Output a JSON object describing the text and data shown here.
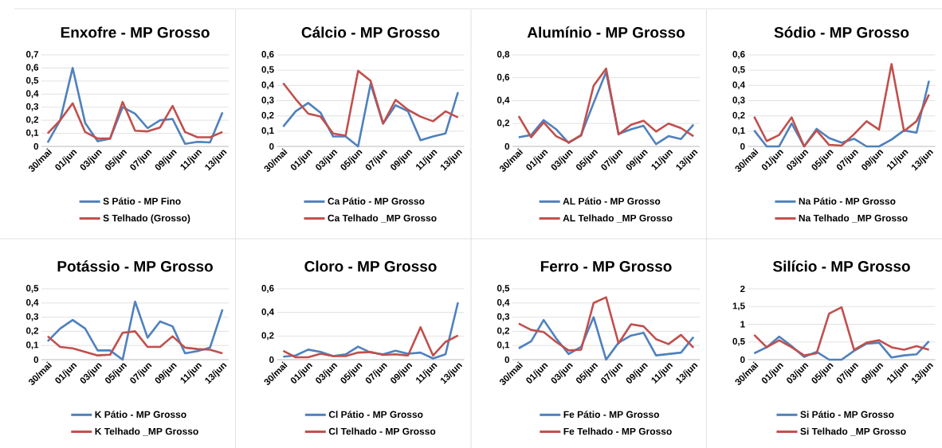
{
  "chart_data": [
    {
      "type": "line",
      "title": "Enxofre - MP Grosso",
      "categories": [
        "30/mai",
        null,
        "01/jun",
        null,
        "03/jun",
        null,
        "05/jun",
        null,
        "07/jun",
        null,
        "09/jun",
        null,
        "11/jun",
        null,
        "13/jun"
      ],
      "series": [
        {
          "name": "S Pátio - MP Fino",
          "color": "#4f81bd",
          "values": [
            0.03,
            0.2,
            0.6,
            0.18,
            0.04,
            0.06,
            0.3,
            0.25,
            0.14,
            0.2,
            0.21,
            0.02,
            0.035,
            0.03,
            0.26
          ]
        },
        {
          "name": "S Telhado (Grosso)",
          "color": "#c0504d",
          "values": [
            0.1,
            0.2,
            0.33,
            0.11,
            0.06,
            0.06,
            0.34,
            0.12,
            0.115,
            0.145,
            0.31,
            0.11,
            0.07,
            0.07,
            0.11
          ]
        }
      ],
      "ylim": [
        0,
        0.7
      ],
      "yticks": [
        0,
        {
          "value": 0.1,
          "label": "0,1"
        },
        {
          "value": 0.2,
          "label": "0,2"
        },
        {
          "value": 0.3,
          "label": "0,3"
        },
        {
          "value": 0.4,
          "label": "0,4"
        },
        {
          "value": 0.5,
          "label": "0,5"
        },
        {
          "value": 0.6,
          "label": "0,6"
        },
        {
          "value": 0.7,
          "label": "0,7"
        }
      ],
      "grid": "y",
      "legend": "bottom"
    },
    {
      "type": "line",
      "title": "Cálcio - MP Grosso",
      "categories": [
        "30/mai",
        null,
        "01/jun",
        null,
        "03/jun",
        null,
        "05/jun",
        null,
        "07/jun",
        null,
        "09/jun",
        null,
        "11/jun",
        null,
        "13/jun"
      ],
      "series": [
        {
          "name": "Ca Pátio - MP Grosso",
          "color": "#4f81bd",
          "values": [
            0.13,
            0.23,
            0.285,
            0.22,
            0.065,
            0.065,
            0.0,
            0.41,
            0.15,
            0.27,
            0.23,
            0.04,
            0.065,
            0.085,
            0.355
          ]
        },
        {
          "name": "Ca Telhado _MP Grosso",
          "color": "#c0504d",
          "values": [
            0.415,
            0.31,
            0.215,
            0.195,
            0.085,
            0.07,
            0.495,
            0.43,
            0.15,
            0.305,
            0.24,
            0.195,
            0.165,
            0.23,
            0.19
          ]
        }
      ],
      "ylim": [
        0,
        0.6
      ],
      "yticks": [
        0,
        {
          "value": 0.1,
          "label": "0,1"
        },
        {
          "value": 0.2,
          "label": "0,2"
        },
        {
          "value": 0.3,
          "label": "0,3"
        },
        {
          "value": 0.4,
          "label": "0,4"
        },
        {
          "value": 0.5,
          "label": "0,5"
        },
        {
          "value": 0.6,
          "label": "0,6"
        }
      ],
      "grid": "y",
      "legend": "bottom"
    },
    {
      "type": "line",
      "title": "Alumínio - MP Grosso",
      "categories": [
        "30/mai",
        null,
        "01/jun",
        null,
        "03/jun",
        null,
        "05/jun",
        null,
        "07/jun",
        null,
        "09/jun",
        null,
        "11/jun",
        null,
        "13/jun"
      ],
      "series": [
        {
          "name": "AL Pátio - MP Grosso",
          "color": "#4f81bd",
          "values": [
            0.08,
            0.1,
            0.23,
            0.15,
            0.03,
            0.1,
            0.38,
            0.65,
            0.11,
            0.15,
            0.18,
            0.02,
            0.09,
            0.065,
            0.19
          ]
        },
        {
          "name": "AL Telhado _MP Grosso",
          "color": "#c0504d",
          "values": [
            0.265,
            0.08,
            0.21,
            0.09,
            0.035,
            0.095,
            0.53,
            0.68,
            0.105,
            0.19,
            0.225,
            0.13,
            0.2,
            0.16,
            0.09
          ]
        }
      ],
      "ylim": [
        0,
        0.8
      ],
      "yticks": [
        0,
        {
          "value": 0.2,
          "label": "0,2"
        },
        {
          "value": 0.4,
          "label": "0,4"
        },
        {
          "value": 0.6,
          "label": "0,6"
        },
        {
          "value": 0.8,
          "label": "0,8"
        }
      ],
      "grid": "y",
      "legend": "bottom"
    },
    {
      "type": "line",
      "title": "Sódio - MP Grosso",
      "categories": [
        "30/mai",
        null,
        "01/jun",
        null,
        "03/jun",
        null,
        "05/jun",
        null,
        "07/jun",
        null,
        "09/jun",
        null,
        "11/jun",
        null,
        "13/jun"
      ],
      "series": [
        {
          "name": "Na Pátio - MP Grosso",
          "color": "#4f81bd",
          "values": [
            0.105,
            0.0,
            0.0,
            0.15,
            0.0,
            0.115,
            0.055,
            0.025,
            0.05,
            0.0,
            0.0,
            0.045,
            0.105,
            0.09,
            0.43
          ]
        },
        {
          "name": "Na Telhado _MP Grosso",
          "color": "#c0504d",
          "values": [
            0.195,
            0.035,
            0.075,
            0.19,
            0.0,
            0.105,
            0.01,
            0.005,
            0.08,
            0.165,
            0.11,
            0.54,
            0.1,
            0.165,
            0.34
          ]
        }
      ],
      "ylim": [
        0,
        0.6
      ],
      "yticks": [
        0,
        {
          "value": 0.1,
          "label": "0,1"
        },
        {
          "value": 0.2,
          "label": "0,2"
        },
        {
          "value": 0.3,
          "label": "0,3"
        },
        {
          "value": 0.4,
          "label": "0,4"
        },
        {
          "value": 0.5,
          "label": "0,5"
        },
        {
          "value": 0.6,
          "label": "0,6"
        }
      ],
      "grid": "y",
      "legend": "bottom"
    },
    {
      "type": "line",
      "title": "Potássio - MP Grosso",
      "categories": [
        "30/mai",
        null,
        "01/jun",
        null,
        "03/jun",
        null,
        "05/jun",
        null,
        "07/jun",
        null,
        "09/jun",
        null,
        "11/jun",
        null,
        "13/jun"
      ],
      "series": [
        {
          "name": "K Pátio - MP Grosso",
          "color": "#4f81bd",
          "values": [
            0.13,
            0.22,
            0.28,
            0.22,
            0.065,
            0.065,
            0.0,
            0.41,
            0.155,
            0.27,
            0.235,
            0.045,
            0.06,
            0.085,
            0.355
          ]
        },
        {
          "name": "K Telhado _MP Grosso",
          "color": "#c0504d",
          "values": [
            0.165,
            0.09,
            0.08,
            0.055,
            0.03,
            0.035,
            0.19,
            0.2,
            0.09,
            0.09,
            0.165,
            0.085,
            0.075,
            0.07,
            0.045
          ]
        }
      ],
      "ylim": [
        0,
        0.5
      ],
      "yticks": [
        0,
        {
          "value": 0.1,
          "label": "0,1"
        },
        {
          "value": 0.2,
          "label": "0,2"
        },
        {
          "value": 0.3,
          "label": "0,3"
        },
        {
          "value": 0.4,
          "label": "0,4"
        },
        {
          "value": 0.5,
          "label": "0,5"
        }
      ],
      "grid": "y",
      "legend": "bottom"
    },
    {
      "type": "line",
      "title": "Cloro - MP Grosso",
      "categories": [
        "30/mai",
        null,
        "01/jun",
        null,
        "03/jun",
        null,
        "05/jun",
        null,
        "07/jun",
        null,
        "09/jun",
        null,
        "11/jun",
        null,
        "13/jun"
      ],
      "series": [
        {
          "name": "Cl Pátio - MP Grosso",
          "color": "#4f81bd",
          "values": [
            0.025,
            0.035,
            0.085,
            0.065,
            0.03,
            0.045,
            0.11,
            0.06,
            0.045,
            0.075,
            0.05,
            0.06,
            0.01,
            0.045,
            0.485
          ]
        },
        {
          "name": "Cl Telhado - MP Grosso",
          "color": "#c0504d",
          "values": [
            0.075,
            0.02,
            0.02,
            0.05,
            0.03,
            0.03,
            0.06,
            0.065,
            0.04,
            0.045,
            0.035,
            0.275,
            0.035,
            0.15,
            0.205
          ]
        }
      ],
      "ylim": [
        0,
        0.6
      ],
      "yticks": [
        0,
        {
          "value": 0.2,
          "label": "0,2"
        },
        {
          "value": 0.4,
          "label": "0,4"
        },
        {
          "value": 0.6,
          "label": "0,6"
        }
      ],
      "grid": "y",
      "legend": "bottom"
    },
    {
      "type": "line",
      "title": "Ferro - MP Grosso",
      "categories": [
        "30/mai",
        null,
        "01/jun",
        null,
        "03/jun",
        null,
        "05/jun",
        null,
        "07/jun",
        null,
        "09/jun",
        null,
        "11/jun",
        null,
        "13/jun"
      ],
      "series": [
        {
          "name": "Fe Pátio - MP Grosso",
          "color": "#4f81bd",
          "values": [
            0.08,
            0.13,
            0.28,
            0.15,
            0.04,
            0.09,
            0.3,
            0.0,
            0.12,
            0.17,
            0.19,
            0.03,
            0.04,
            0.05,
            0.16
          ]
        },
        {
          "name": "Fe Telhado - MP Grosso",
          "color": "#c0504d",
          "values": [
            0.255,
            0.21,
            0.195,
            0.125,
            0.065,
            0.07,
            0.4,
            0.44,
            0.115,
            0.25,
            0.235,
            0.145,
            0.11,
            0.175,
            0.085
          ]
        }
      ],
      "ylim": [
        0,
        0.5
      ],
      "yticks": [
        0,
        {
          "value": 0.1,
          "label": "0,1"
        },
        {
          "value": 0.2,
          "label": "0,2"
        },
        {
          "value": 0.3,
          "label": "0,3"
        },
        {
          "value": 0.4,
          "label": "0,4"
        },
        {
          "value": 0.5,
          "label": "0,5"
        }
      ],
      "grid": "y",
      "legend": "bottom"
    },
    {
      "type": "line",
      "title": "Silício - MP Grosso",
      "categories": [
        "30/mai",
        null,
        "01/jun",
        null,
        "03/jun",
        null,
        "05/jun",
        null,
        "07/jun",
        null,
        "09/jun",
        null,
        "11/jun",
        null,
        "13/jun"
      ],
      "series": [
        {
          "name": "Si Pátio - MP Grosso",
          "color": "#4f81bd",
          "values": [
            0.18,
            0.35,
            0.65,
            0.38,
            0.08,
            0.22,
            0.0,
            0.0,
            0.25,
            0.45,
            0.48,
            0.06,
            0.12,
            0.15,
            0.52
          ]
        },
        {
          "name": "Si Telhado _MP Grosso",
          "color": "#c0504d",
          "values": [
            0.7,
            0.35,
            0.55,
            0.35,
            0.12,
            0.18,
            1.3,
            1.48,
            0.28,
            0.48,
            0.55,
            0.35,
            0.28,
            0.38,
            0.28
          ]
        }
      ],
      "ylim": [
        0,
        2
      ],
      "yticks": [
        0,
        {
          "value": 0.5,
          "label": "0,5"
        },
        1,
        {
          "value": 1.5,
          "label": "1,5"
        },
        2
      ],
      "grid": "y",
      "legend": "bottom"
    }
  ]
}
